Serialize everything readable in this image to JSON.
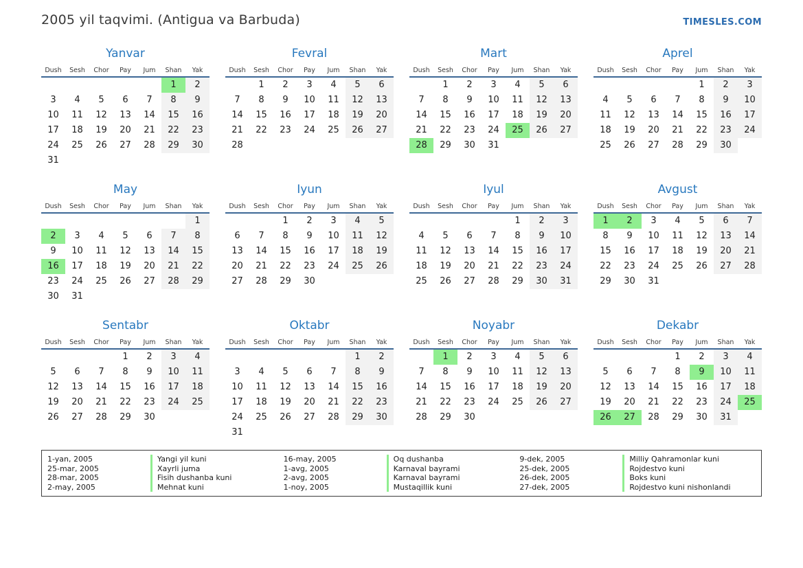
{
  "header": {
    "title": "2005 yil taqvimi. (Antigua va Barbuda)",
    "site": "TIMESLES.COM"
  },
  "colors": {
    "accent_blue": "#2878be",
    "link_blue": "#2b6cb0",
    "holiday_green": "#90ee90",
    "weekend_gray": "#f2f2f2",
    "header_line": "#3c6795"
  },
  "day_names": [
    "Dush",
    "Sesh",
    "Chor",
    "Pay",
    "Jum",
    "Shan",
    "Yak"
  ],
  "months": [
    {
      "name": "Yanvar",
      "holidays": [
        1
      ],
      "weeks": [
        [
          null,
          null,
          null,
          null,
          null,
          1,
          2
        ],
        [
          3,
          4,
          5,
          6,
          7,
          8,
          9
        ],
        [
          10,
          11,
          12,
          13,
          14,
          15,
          16
        ],
        [
          17,
          18,
          19,
          20,
          21,
          22,
          23
        ],
        [
          24,
          25,
          26,
          27,
          28,
          29,
          30
        ],
        [
          31,
          null,
          null,
          null,
          null,
          null,
          null
        ]
      ]
    },
    {
      "name": "Fevral",
      "holidays": [],
      "weeks": [
        [
          null,
          1,
          2,
          3,
          4,
          5,
          6
        ],
        [
          7,
          8,
          9,
          10,
          11,
          12,
          13
        ],
        [
          14,
          15,
          16,
          17,
          18,
          19,
          20
        ],
        [
          21,
          22,
          23,
          24,
          25,
          26,
          27
        ],
        [
          28,
          null,
          null,
          null,
          null,
          null,
          null
        ]
      ]
    },
    {
      "name": "Mart",
      "holidays": [
        25,
        28
      ],
      "weeks": [
        [
          null,
          1,
          2,
          3,
          4,
          5,
          6
        ],
        [
          7,
          8,
          9,
          10,
          11,
          12,
          13
        ],
        [
          14,
          15,
          16,
          17,
          18,
          19,
          20
        ],
        [
          21,
          22,
          23,
          24,
          25,
          26,
          27
        ],
        [
          28,
          29,
          30,
          31,
          null,
          null,
          null
        ]
      ]
    },
    {
      "name": "Aprel",
      "holidays": [],
      "weeks": [
        [
          null,
          null,
          null,
          null,
          1,
          2,
          3
        ],
        [
          4,
          5,
          6,
          7,
          8,
          9,
          10
        ],
        [
          11,
          12,
          13,
          14,
          15,
          16,
          17
        ],
        [
          18,
          19,
          20,
          21,
          22,
          23,
          24
        ],
        [
          25,
          26,
          27,
          28,
          29,
          30,
          null
        ]
      ]
    },
    {
      "name": "May",
      "holidays": [
        2,
        16
      ],
      "weeks": [
        [
          null,
          null,
          null,
          null,
          null,
          null,
          1
        ],
        [
          2,
          3,
          4,
          5,
          6,
          7,
          8
        ],
        [
          9,
          10,
          11,
          12,
          13,
          14,
          15
        ],
        [
          16,
          17,
          18,
          19,
          20,
          21,
          22
        ],
        [
          23,
          24,
          25,
          26,
          27,
          28,
          29
        ],
        [
          30,
          31,
          null,
          null,
          null,
          null,
          null
        ]
      ]
    },
    {
      "name": "Iyun",
      "holidays": [],
      "weeks": [
        [
          null,
          null,
          1,
          2,
          3,
          4,
          5
        ],
        [
          6,
          7,
          8,
          9,
          10,
          11,
          12
        ],
        [
          13,
          14,
          15,
          16,
          17,
          18,
          19
        ],
        [
          20,
          21,
          22,
          23,
          24,
          25,
          26
        ],
        [
          27,
          28,
          29,
          30,
          null,
          null,
          null
        ]
      ]
    },
    {
      "name": "Iyul",
      "holidays": [],
      "weeks": [
        [
          null,
          null,
          null,
          null,
          1,
          2,
          3
        ],
        [
          4,
          5,
          6,
          7,
          8,
          9,
          10
        ],
        [
          11,
          12,
          13,
          14,
          15,
          16,
          17
        ],
        [
          18,
          19,
          20,
          21,
          22,
          23,
          24
        ],
        [
          25,
          26,
          27,
          28,
          29,
          30,
          31
        ]
      ]
    },
    {
      "name": "Avgust",
      "holidays": [
        1,
        2
      ],
      "weeks": [
        [
          1,
          2,
          3,
          4,
          5,
          6,
          7
        ],
        [
          8,
          9,
          10,
          11,
          12,
          13,
          14
        ],
        [
          15,
          16,
          17,
          18,
          19,
          20,
          21
        ],
        [
          22,
          23,
          24,
          25,
          26,
          27,
          28
        ],
        [
          29,
          30,
          31,
          null,
          null,
          null,
          null
        ]
      ]
    },
    {
      "name": "Sentabr",
      "holidays": [],
      "weeks": [
        [
          null,
          null,
          null,
          1,
          2,
          3,
          4
        ],
        [
          5,
          6,
          7,
          8,
          9,
          10,
          11
        ],
        [
          12,
          13,
          14,
          15,
          16,
          17,
          18
        ],
        [
          19,
          20,
          21,
          22,
          23,
          24,
          25
        ],
        [
          26,
          27,
          28,
          29,
          30,
          null,
          null
        ]
      ]
    },
    {
      "name": "Oktabr",
      "holidays": [],
      "weeks": [
        [
          null,
          null,
          null,
          null,
          null,
          1,
          2
        ],
        [
          3,
          4,
          5,
          6,
          7,
          8,
          9
        ],
        [
          10,
          11,
          12,
          13,
          14,
          15,
          16
        ],
        [
          17,
          18,
          19,
          20,
          21,
          22,
          23
        ],
        [
          24,
          25,
          26,
          27,
          28,
          29,
          30
        ],
        [
          31,
          null,
          null,
          null,
          null,
          null,
          null
        ]
      ]
    },
    {
      "name": "Noyabr",
      "holidays": [
        1
      ],
      "weeks": [
        [
          null,
          1,
          2,
          3,
          4,
          5,
          6
        ],
        [
          7,
          8,
          9,
          10,
          11,
          12,
          13
        ],
        [
          14,
          15,
          16,
          17,
          18,
          19,
          20
        ],
        [
          21,
          22,
          23,
          24,
          25,
          26,
          27
        ],
        [
          28,
          29,
          30,
          null,
          null,
          null,
          null
        ]
      ]
    },
    {
      "name": "Dekabr",
      "holidays": [
        9,
        25,
        26,
        27
      ],
      "weeks": [
        [
          null,
          null,
          null,
          1,
          2,
          3,
          4
        ],
        [
          5,
          6,
          7,
          8,
          9,
          10,
          11
        ],
        [
          12,
          13,
          14,
          15,
          16,
          17,
          18
        ],
        [
          19,
          20,
          21,
          22,
          23,
          24,
          25
        ],
        [
          26,
          27,
          28,
          29,
          30,
          31,
          null
        ]
      ]
    }
  ],
  "legend": {
    "items": [
      {
        "date": "1-yan, 2005",
        "name": "Yangi yil kuni"
      },
      {
        "date": "25-mar, 2005",
        "name": "Xayrli juma"
      },
      {
        "date": "28-mar, 2005",
        "name": "Fisih dushanba kuni"
      },
      {
        "date": "2-may, 2005",
        "name": "Mehnat kuni"
      },
      {
        "date": "16-may, 2005",
        "name": "Oq dushanba"
      },
      {
        "date": "1-avg, 2005",
        "name": "Karnaval bayrami"
      },
      {
        "date": "2-avg, 2005",
        "name": "Karnaval bayrami"
      },
      {
        "date": "1-noy, 2005",
        "name": "Mustaqillik kuni"
      },
      {
        "date": "9-dek, 2005",
        "name": "Milliy Qahramonlar kuni"
      },
      {
        "date": "25-dek, 2005",
        "name": "Rojdestvo kuni"
      },
      {
        "date": "26-dek, 2005",
        "name": "Boks kuni"
      },
      {
        "date": "27-dek, 2005",
        "name": "Rojdestvo kuni nishonlandi"
      }
    ]
  }
}
